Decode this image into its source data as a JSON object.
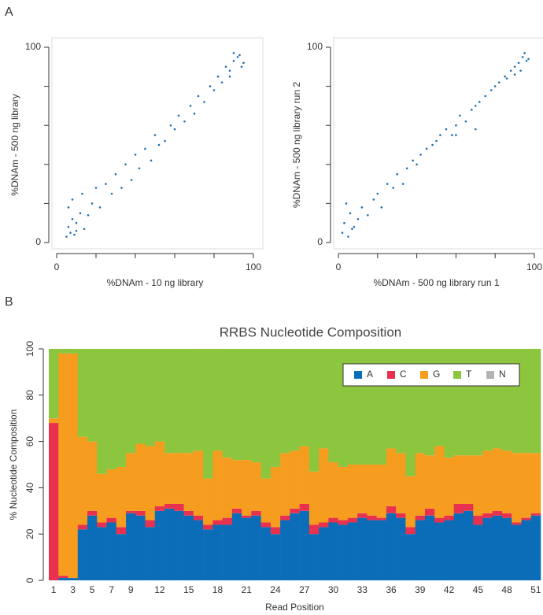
{
  "panel_labels": [
    "A",
    "B"
  ],
  "chart_data": [
    {
      "type": "scatter",
      "x_label": "%DNAm - 10 ng library",
      "y_label": "%DNAm - 500 ng library",
      "color": "#1f6fb5",
      "xlim": [
        0,
        100
      ],
      "ylim": [
        0,
        100
      ],
      "xticks": [
        0,
        {
          "value": 20,
          "label": null
        },
        {
          "value": 40,
          "label": null
        },
        {
          "value": 60,
          "label": null
        },
        {
          "value": 80,
          "label": null
        },
        100
      ],
      "yticks": [
        0,
        {
          "value": 20,
          "label": null
        },
        {
          "value": 40,
          "label": null
        },
        {
          "value": 60,
          "label": null
        },
        {
          "value": 80,
          "label": null
        },
        100
      ],
      "x": [
        5,
        6,
        7,
        8,
        9,
        10,
        12,
        14,
        6,
        8,
        10,
        13,
        16,
        18,
        20,
        22,
        25,
        28,
        30,
        33,
        35,
        38,
        40,
        42,
        45,
        48,
        50,
        52,
        55,
        58,
        60,
        62,
        65,
        68,
        70,
        72,
        75,
        78,
        80,
        82,
        84,
        86,
        88,
        90,
        92,
        94,
        90,
        88,
        93,
        95
      ],
      "y": [
        3,
        8,
        5,
        12,
        4,
        10,
        15,
        7,
        18,
        22,
        6,
        25,
        14,
        20,
        28,
        18,
        30,
        25,
        35,
        28,
        40,
        32,
        45,
        38,
        48,
        42,
        55,
        50,
        52,
        60,
        58,
        65,
        62,
        70,
        66,
        75,
        72,
        80,
        78,
        85,
        82,
        90,
        88,
        93,
        95,
        90,
        97,
        85,
        96,
        92
      ]
    },
    {
      "type": "scatter",
      "x_label": "%DNAm - 500 ng library run 1",
      "y_label": "%DNAm - 500 ng library run 2",
      "color": "#1f6fb5",
      "xlim": [
        0,
        100
      ],
      "ylim": [
        0,
        100
      ],
      "xticks": [
        0,
        {
          "value": 20,
          "label": null
        },
        {
          "value": 40,
          "label": null
        },
        {
          "value": 60,
          "label": null
        },
        {
          "value": 80,
          "label": null
        },
        100
      ],
      "yticks": [
        0,
        {
          "value": 20,
          "label": null
        },
        {
          "value": 40,
          "label": null
        },
        {
          "value": 60,
          "label": null
        },
        {
          "value": 80,
          "label": null
        },
        100
      ],
      "x": [
        2,
        3,
        5,
        6,
        8,
        10,
        12,
        15,
        4,
        7,
        18,
        20,
        22,
        25,
        28,
        30,
        33,
        35,
        38,
        40,
        42,
        45,
        48,
        50,
        52,
        55,
        58,
        60,
        62,
        65,
        68,
        70,
        72,
        75,
        78,
        80,
        82,
        85,
        88,
        90,
        92,
        94,
        96,
        93,
        95,
        86,
        90,
        97,
        70,
        60
      ],
      "y": [
        5,
        10,
        3,
        15,
        8,
        12,
        18,
        14,
        20,
        7,
        22,
        25,
        18,
        30,
        28,
        35,
        30,
        38,
        42,
        40,
        45,
        48,
        50,
        52,
        55,
        58,
        55,
        60,
        65,
        62,
        68,
        70,
        72,
        75,
        78,
        80,
        82,
        85,
        88,
        90,
        92,
        95,
        93,
        88,
        97,
        84,
        86,
        94,
        58,
        55
      ]
    },
    {
      "type": "stacked_bar",
      "title": "RRBS Nucleotide Composition",
      "x_label": "Read Position",
      "y_label": "% Nucleotide Composition",
      "legend": "top-right",
      "ylim": [
        0,
        100
      ],
      "yticks": [
        0,
        20,
        40,
        60,
        80,
        100
      ],
      "categories": [
        "1",
        null,
        "3",
        null,
        "5",
        null,
        "7",
        null,
        "9",
        null,
        null,
        "12",
        null,
        null,
        "15",
        null,
        null,
        "18",
        null,
        null,
        "21",
        null,
        null,
        "24",
        null,
        null,
        "27",
        null,
        null,
        "30",
        null,
        null,
        "33",
        null,
        null,
        "36",
        null,
        null,
        "39",
        null,
        null,
        "42",
        null,
        null,
        "45",
        null,
        null,
        "48",
        null,
        null,
        "51"
      ],
      "series": [
        {
          "name": "A",
          "color": "#0b6db7",
          "values": [
            0,
            1,
            1,
            22,
            28,
            23,
            25,
            20,
            29,
            28,
            23,
            30,
            31,
            30,
            28,
            26,
            22,
            24,
            24,
            29,
            27,
            28,
            23,
            20,
            26,
            29,
            30,
            20,
            23,
            25,
            24,
            25,
            27,
            26,
            26,
            29,
            27,
            20,
            26,
            28,
            25,
            26,
            29,
            30,
            24,
            27,
            28,
            27,
            24,
            26,
            28
          ]
        },
        {
          "name": "C",
          "color": "#e8304f",
          "values": [
            68,
            1,
            0,
            2,
            2,
            2,
            2,
            3,
            1,
            2,
            3,
            2,
            2,
            3,
            2,
            2,
            2,
            2,
            3,
            2,
            1,
            2,
            2,
            3,
            2,
            2,
            3,
            4,
            2,
            2,
            2,
            2,
            2,
            2,
            1,
            3,
            2,
            3,
            2,
            3,
            2,
            2,
            4,
            3,
            4,
            2,
            2,
            2,
            1,
            1,
            1
          ]
        },
        {
          "name": "G",
          "color": "#f69c1f",
          "values": [
            2,
            96,
            97,
            38,
            30,
            21,
            21,
            26,
            25,
            29,
            32,
            28,
            22,
            22,
            25,
            28,
            20,
            30,
            26,
            21,
            24,
            21,
            19,
            26,
            27,
            25,
            25,
            23,
            32,
            24,
            23,
            23,
            21,
            22,
            23,
            25,
            26,
            22,
            27,
            23,
            31,
            25,
            21,
            21,
            26,
            27,
            27,
            27,
            30,
            28,
            26
          ]
        },
        {
          "name": "T",
          "color": "#8cc63e",
          "values": [
            30,
            2,
            2,
            38,
            40,
            54,
            52,
            51,
            45,
            41,
            42,
            40,
            45,
            45,
            45,
            44,
            56,
            44,
            47,
            48,
            48,
            49,
            56,
            51,
            45,
            44,
            42,
            53,
            43,
            49,
            51,
            50,
            50,
            50,
            50,
            43,
            45,
            55,
            45,
            46,
            42,
            47,
            46,
            46,
            46,
            44,
            43,
            44,
            45,
            45,
            45
          ]
        },
        {
          "name": "N",
          "color": "#b3b3b3",
          "values": [
            0,
            0,
            0,
            0,
            0,
            0,
            0,
            0,
            0,
            0,
            0,
            0,
            0,
            0,
            0,
            0,
            0,
            0,
            0,
            0,
            0,
            0,
            0,
            0,
            0,
            0,
            0,
            0,
            0,
            0,
            0,
            0,
            0,
            0,
            0,
            0,
            0,
            0,
            0,
            0,
            0,
            0,
            0,
            0,
            0,
            0,
            0,
            0,
            0,
            0,
            0
          ]
        }
      ]
    }
  ]
}
